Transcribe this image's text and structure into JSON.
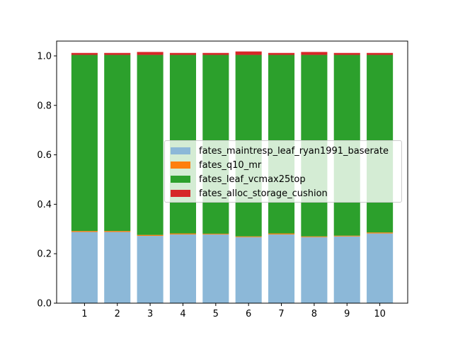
{
  "chart_data": {
    "type": "bar",
    "stacked": true,
    "categories": [
      "1",
      "2",
      "3",
      "4",
      "5",
      "6",
      "7",
      "8",
      "9",
      "10"
    ],
    "ylim": [
      0,
      1.06
    ],
    "yticks": [
      "0.0",
      "0.2",
      "0.4",
      "0.6",
      "0.8",
      "1.0"
    ],
    "ytick_values": [
      0,
      0.2,
      0.4,
      0.6,
      0.8,
      1.0
    ],
    "legend_position": "center-right",
    "series": [
      {
        "name": "fates_maintresp_leaf_ryan1991_baserate",
        "color": "#8cb8d8",
        "values": [
          0.288,
          0.288,
          0.272,
          0.278,
          0.278,
          0.267,
          0.278,
          0.267,
          0.27,
          0.282
        ]
      },
      {
        "name": "fates_q10_mr",
        "color": "#ff7f0e",
        "values": [
          0.004,
          0.004,
          0.004,
          0.004,
          0.003,
          0.003,
          0.004,
          0.003,
          0.003,
          0.004
        ]
      },
      {
        "name": "fates_leaf_vcmax25top",
        "color": "#2ca02c",
        "values": [
          0.712,
          0.712,
          0.728,
          0.722,
          0.723,
          0.734,
          0.722,
          0.734,
          0.731,
          0.718
        ]
      },
      {
        "name": "fates_alloc_storage_cushion",
        "color": "#d62728",
        "values": [
          0.008,
          0.008,
          0.012,
          0.008,
          0.008,
          0.014,
          0.008,
          0.012,
          0.008,
          0.008
        ]
      }
    ]
  }
}
